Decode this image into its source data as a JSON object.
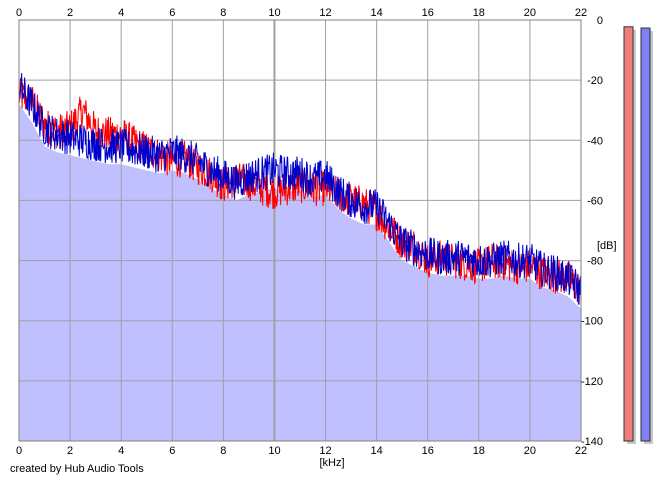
{
  "chart_data": {
    "type": "line",
    "xlabel": "[kHz]",
    "ylabel": "[dB]",
    "xlim": [
      0,
      22
    ],
    "ylim": [
      -140,
      0
    ],
    "x_ticks": [
      0,
      2,
      4,
      6,
      8,
      10,
      12,
      14,
      16,
      18,
      20,
      22
    ],
    "y_ticks": [
      0,
      -20,
      -40,
      -60,
      -80,
      -100,
      -120,
      -140
    ],
    "grid": true,
    "series": [
      {
        "color": "#ff0000",
        "x": [
          0,
          0.5,
          1,
          1.5,
          2,
          2.5,
          3,
          3.5,
          4,
          4.5,
          5,
          5.5,
          6,
          6.5,
          7,
          7.5,
          8,
          8.5,
          9,
          9.5,
          10,
          10.5,
          11,
          11.5,
          12,
          12.5,
          13,
          13.5,
          14,
          14.5,
          15,
          15.5,
          16,
          16.5,
          17,
          17.5,
          18,
          18.5,
          19,
          19.5,
          20,
          20.5,
          21,
          21.5,
          22
        ],
        "values": [
          -25,
          -27,
          -35,
          -37,
          -36,
          -30,
          -37,
          -38,
          -38,
          -41,
          -43,
          -45,
          -47,
          -46,
          -49,
          -51,
          -55,
          -53,
          -54,
          -56,
          -57,
          -56,
          -55,
          -56,
          -56,
          -58,
          -60,
          -61,
          -64,
          -69,
          -74,
          -75,
          -80,
          -79,
          -80,
          -81,
          -82,
          -80,
          -81,
          -82,
          -82,
          -84,
          -85,
          -86,
          -90
        ]
      },
      {
        "color": "#0000cc",
        "x": [
          0,
          0.5,
          1,
          1.5,
          2,
          2.5,
          3,
          3.5,
          4,
          4.5,
          5,
          5.5,
          6,
          6.5,
          7,
          7.5,
          8,
          8.5,
          9,
          9.5,
          10,
          10.5,
          11,
          11.5,
          12,
          12.5,
          13,
          13.5,
          14,
          14.5,
          15,
          15.5,
          16,
          16.5,
          17,
          17.5,
          18,
          18.5,
          19,
          19.5,
          20,
          20.5,
          21,
          21.5,
          22
        ],
        "values": [
          -22,
          -28,
          -36,
          -38,
          -39,
          -40,
          -41,
          -42,
          -42,
          -43,
          -44,
          -45,
          -44,
          -45,
          -47,
          -50,
          -52,
          -54,
          -52,
          -51,
          -50,
          -51,
          -51,
          -53,
          -52,
          -57,
          -60,
          -62,
          -62,
          -68,
          -74,
          -76,
          -78,
          -79,
          -79,
          -79,
          -80,
          -80,
          -79,
          -80,
          -80,
          -83,
          -84,
          -86,
          -90
        ]
      }
    ],
    "level_meters": [
      {
        "color": "#ef7f7f",
        "value_db": -3
      },
      {
        "color": "#7f7ff7",
        "value_db": -5
      }
    ]
  },
  "credit": "created by Hub Audio Tools"
}
